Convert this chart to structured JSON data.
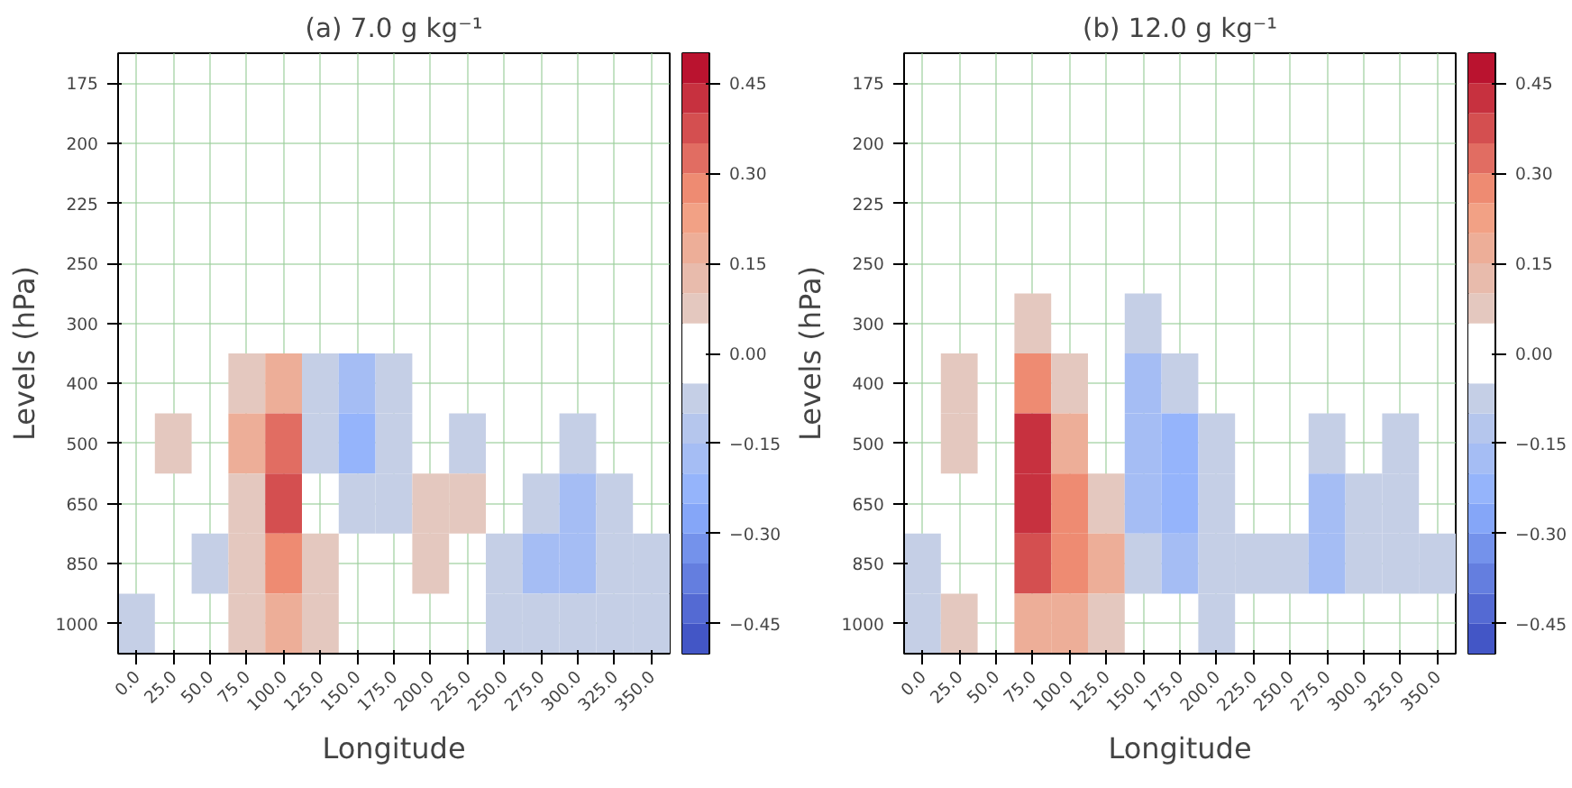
{
  "chart_data": [
    {
      "type": "heatmap",
      "title": "(a) 7.0 g kg⁻¹",
      "xlabel": "Longitude",
      "ylabel": "Levels (hPa)",
      "categories": [
        "0.0",
        "25.0",
        "50.0",
        "75.0",
        "100.0",
        "125.0",
        "150.0",
        "175.0",
        "200.0",
        "225.0",
        "250.0",
        "275.0",
        "300.0",
        "325.0",
        "350.0"
      ],
      "y_categories": [
        "175",
        "200",
        "225",
        "250",
        "300",
        "400",
        "500",
        "650",
        "850",
        "1000"
      ],
      "cells": [
        [
          null,
          null,
          null,
          null,
          null,
          null,
          null,
          null,
          null,
          null,
          null,
          null,
          null,
          null,
          null
        ],
        [
          null,
          null,
          null,
          null,
          null,
          null,
          null,
          null,
          null,
          null,
          null,
          null,
          null,
          null,
          null
        ],
        [
          null,
          null,
          null,
          null,
          null,
          null,
          null,
          null,
          null,
          null,
          null,
          null,
          null,
          null,
          null
        ],
        [
          null,
          null,
          null,
          null,
          null,
          null,
          null,
          null,
          null,
          null,
          null,
          null,
          null,
          null,
          null
        ],
        [
          null,
          null,
          null,
          null,
          null,
          null,
          null,
          null,
          null,
          null,
          null,
          null,
          null,
          null,
          null
        ],
        [
          null,
          null,
          null,
          0.1,
          0.15,
          -0.1,
          -0.15,
          -0.1,
          null,
          null,
          null,
          null,
          null,
          null,
          null
        ],
        [
          null,
          0.1,
          null,
          0.15,
          0.3,
          -0.1,
          -0.2,
          -0.1,
          null,
          -0.1,
          null,
          null,
          -0.1,
          null,
          null
        ],
        [
          null,
          null,
          null,
          0.1,
          0.35,
          null,
          -0.1,
          -0.1,
          0.1,
          0.1,
          null,
          -0.1,
          -0.15,
          -0.1,
          null
        ],
        [
          null,
          null,
          -0.1,
          0.1,
          0.25,
          0.1,
          null,
          null,
          0.1,
          null,
          -0.1,
          -0.15,
          -0.15,
          -0.1,
          -0.1
        ],
        [
          -0.1,
          null,
          null,
          0.1,
          0.15,
          0.1,
          null,
          null,
          null,
          null,
          -0.1,
          -0.1,
          -0.1,
          -0.1,
          -0.1
        ]
      ],
      "clim": [
        -0.5,
        0.5
      ],
      "cticks": [
        {
          "value": 0.45,
          "label": "0.45"
        },
        {
          "value": 0.3,
          "label": "0.30"
        },
        {
          "value": 0.15,
          "label": "0.15"
        },
        {
          "value": 0,
          "label": "0.00"
        },
        {
          "value": -0.15,
          "label": "−0.15"
        },
        {
          "value": -0.3,
          "label": "−0.30"
        },
        {
          "value": -0.45,
          "label": "−0.45"
        }
      ],
      "grid": true
    },
    {
      "type": "heatmap",
      "title": "(b) 12.0 g kg⁻¹",
      "xlabel": "Longitude",
      "ylabel": "Levels (hPa)",
      "categories": [
        "0.0",
        "25.0",
        "50.0",
        "75.0",
        "100.0",
        "125.0",
        "150.0",
        "175.0",
        "200.0",
        "225.0",
        "250.0",
        "275.0",
        "300.0",
        "325.0",
        "350.0"
      ],
      "y_categories": [
        "175",
        "200",
        "225",
        "250",
        "300",
        "400",
        "500",
        "650",
        "850",
        "1000"
      ],
      "cells": [
        [
          null,
          null,
          null,
          null,
          null,
          null,
          null,
          null,
          null,
          null,
          null,
          null,
          null,
          null,
          null
        ],
        [
          null,
          null,
          null,
          null,
          null,
          null,
          null,
          null,
          null,
          null,
          null,
          null,
          null,
          null,
          null
        ],
        [
          null,
          null,
          null,
          null,
          null,
          null,
          null,
          null,
          null,
          null,
          null,
          null,
          null,
          null,
          null
        ],
        [
          null,
          null,
          null,
          null,
          null,
          null,
          null,
          null,
          null,
          null,
          null,
          null,
          null,
          null,
          null
        ],
        [
          null,
          null,
          null,
          0.1,
          null,
          null,
          -0.1,
          null,
          null,
          null,
          null,
          null,
          null,
          null,
          null
        ],
        [
          null,
          0.1,
          null,
          0.25,
          0.1,
          null,
          -0.15,
          -0.1,
          null,
          null,
          null,
          null,
          null,
          null,
          null
        ],
        [
          null,
          0.1,
          null,
          0.4,
          0.15,
          null,
          -0.15,
          -0.2,
          -0.1,
          null,
          null,
          -0.1,
          null,
          -0.1,
          null
        ],
        [
          null,
          null,
          null,
          0.45,
          0.25,
          0.1,
          -0.15,
          -0.25,
          -0.1,
          null,
          null,
          -0.15,
          -0.1,
          -0.1,
          null
        ],
        [
          -0.1,
          null,
          null,
          0.35,
          0.25,
          0.15,
          -0.1,
          -0.15,
          -0.1,
          -0.1,
          -0.1,
          -0.15,
          -0.1,
          -0.1,
          -0.1
        ],
        [
          -0.1,
          0.1,
          null,
          0.15,
          0.15,
          0.1,
          null,
          null,
          -0.1,
          null,
          null,
          null,
          null,
          null,
          null
        ]
      ],
      "clim": [
        -0.5,
        0.5
      ],
      "cticks": [
        {
          "value": 0.45,
          "label": "0.45"
        },
        {
          "value": 0.3,
          "label": "0.30"
        },
        {
          "value": 0.15,
          "label": "0.15"
        },
        {
          "value": 0,
          "label": "0.00"
        },
        {
          "value": -0.15,
          "label": "−0.15"
        },
        {
          "value": -0.3,
          "label": "−0.30"
        },
        {
          "value": -0.45,
          "label": "−0.45"
        }
      ],
      "grid": true
    }
  ]
}
